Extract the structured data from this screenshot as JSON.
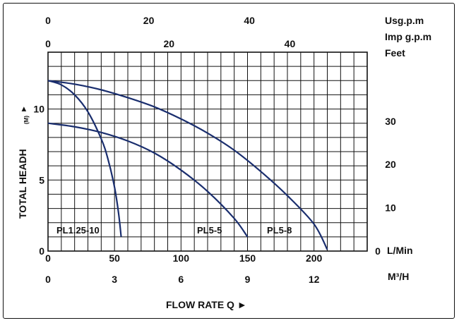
{
  "chart_data": {
    "type": "line",
    "title": "",
    "xlabel": "FLOW RATE Q ►",
    "ylabel": "TOTAL HEADH (M) ►",
    "ylabel_main": "TOTAL HEADH",
    "ylabel_sub": "(M)",
    "ylabel_arrow": "►",
    "xlim": [
      0,
      240
    ],
    "ylim": [
      0,
      14
    ],
    "grid": true,
    "axes": {
      "bottom_lmin": {
        "unit": "L/Min",
        "ticks": [
          0,
          50,
          100,
          150,
          200
        ]
      },
      "bottom_m3h": {
        "unit": "M³/H",
        "ticks": [
          0,
          3,
          6,
          9,
          12
        ]
      },
      "top_usgpm": {
        "unit": "Usg.p.m",
        "ticks": [
          0,
          20,
          40
        ]
      },
      "top_impgpm": {
        "unit": "Imp g.p.m",
        "ticks": [
          0,
          20,
          40
        ]
      },
      "left_m": {
        "ticks": [
          0,
          5,
          10
        ]
      },
      "right_feet": {
        "unit": "Feet",
        "ticks": [
          10,
          20,
          30
        ]
      }
    },
    "series": [
      {
        "name": "PL1.25-10",
        "x": [
          0,
          10,
          20,
          30,
          40,
          45,
          50,
          53,
          55
        ],
        "y": [
          12,
          11.7,
          11.0,
          9.8,
          7.9,
          6.5,
          4.5,
          2.7,
          1.0
        ]
      },
      {
        "name": "PL5-5",
        "x": [
          0,
          20,
          40,
          60,
          80,
          100,
          120,
          140,
          150
        ],
        "y": [
          9.0,
          8.75,
          8.35,
          7.75,
          6.9,
          5.7,
          4.2,
          2.3,
          1.0
        ]
      },
      {
        "name": "PL5-8",
        "x": [
          0,
          20,
          40,
          60,
          80,
          100,
          120,
          140,
          160,
          180,
          200,
          210
        ],
        "y": [
          12,
          11.75,
          11.35,
          10.8,
          10.15,
          9.3,
          8.3,
          7.1,
          5.6,
          3.9,
          1.9,
          0.1
        ]
      }
    ]
  }
}
